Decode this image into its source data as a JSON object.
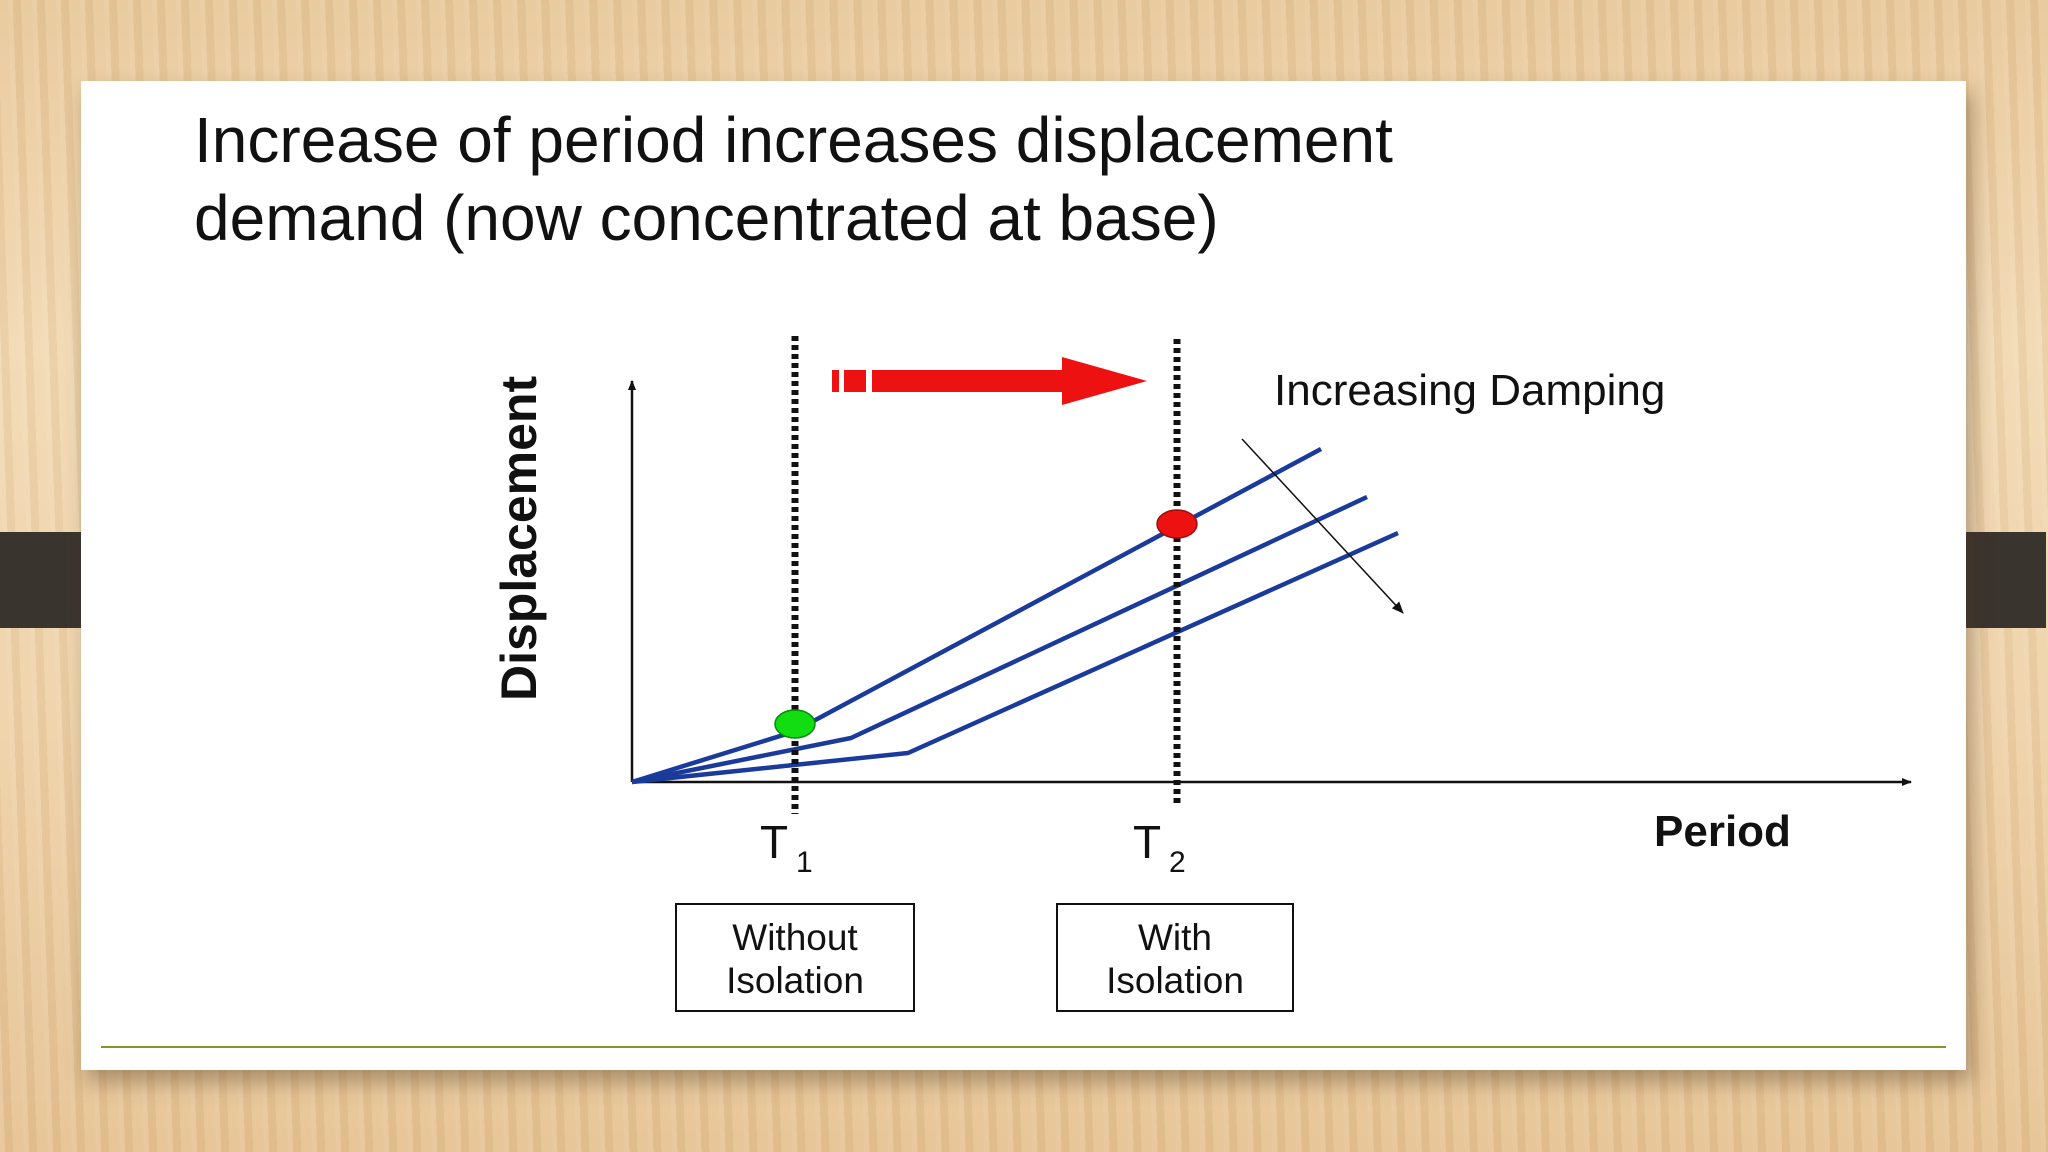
{
  "slide": {
    "title_line1": "Increase of period increases displacement",
    "title_line2": "demand (now concentrated at base)"
  },
  "diagram": {
    "y_axis_label": "Displacement",
    "x_axis_label": "Period",
    "damping_label": "Increasing Damping",
    "t1_letter": "T",
    "t1_sub": "1",
    "t2_letter": "T",
    "t2_sub": "2",
    "box_without_line1": "Without",
    "box_without_line2": "Isolation",
    "box_with_line1": "With",
    "box_with_line2": "Isolation"
  },
  "colors": {
    "curve": "#1a3a9c",
    "arrow": "#ee1111",
    "dot_t1": "#11dd11",
    "dot_t2": "#ee1111",
    "footer_line": "#7a9a2a"
  }
}
